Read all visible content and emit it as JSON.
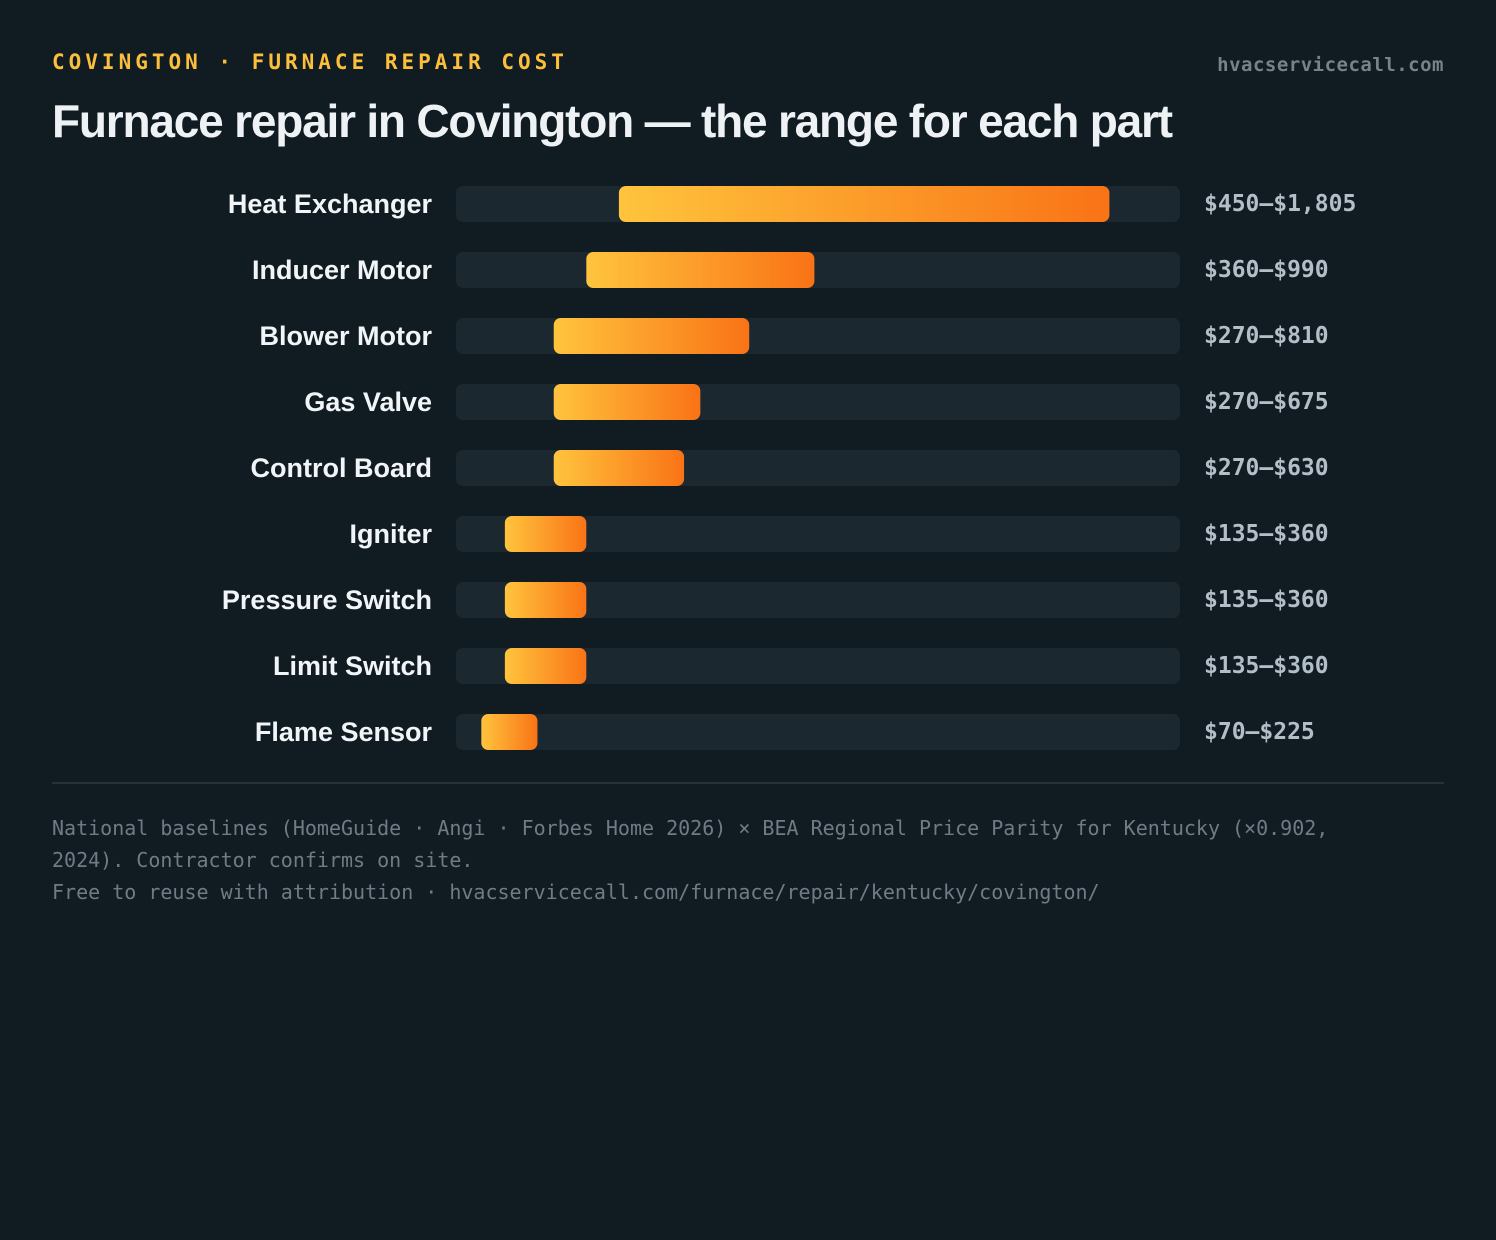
{
  "header": {
    "eyebrow": "COVINGTON · FURNACE REPAIR COST",
    "site": "hvacservicecall.com",
    "title": "Furnace repair in Covington — the range for each part"
  },
  "chart_data": {
    "type": "bar",
    "orientation": "horizontal",
    "kind": "range",
    "title": "Furnace repair in Covington — the range for each part",
    "xlim": [
      0,
      2000
    ],
    "grid": false,
    "legend": "none",
    "categories": [
      "Heat Exchanger",
      "Inducer Motor",
      "Blower Motor",
      "Gas Valve",
      "Control Board",
      "Igniter",
      "Pressure Switch",
      "Limit Switch",
      "Flame Sensor"
    ],
    "low": [
      450,
      360,
      270,
      270,
      270,
      135,
      135,
      135,
      70
    ],
    "high": [
      1805,
      990,
      810,
      675,
      630,
      360,
      360,
      360,
      225
    ],
    "labels": [
      "$450–$1,805",
      "$360–$990",
      "$270–$810",
      "$270–$675",
      "$270–$630",
      "$135–$360",
      "$135–$360",
      "$135–$360",
      "$70–$225"
    ],
    "colors": {
      "track": "#1b2830",
      "bar_start": "#ffc43d",
      "bar_end": "#f97316",
      "category_text": "#f2f5f7",
      "value_text": "#b3bfc8"
    }
  },
  "footer": {
    "note_line1": "National baselines (HomeGuide · Angi · Forbes Home 2026) × BEA Regional Price Parity for Kentucky (×0.902,",
    "note_line2": "2024). Contractor confirms on site.",
    "note_line3": "Free to reuse with attribution · hvacservicecall.com/furnace/repair/kentucky/covington/"
  }
}
